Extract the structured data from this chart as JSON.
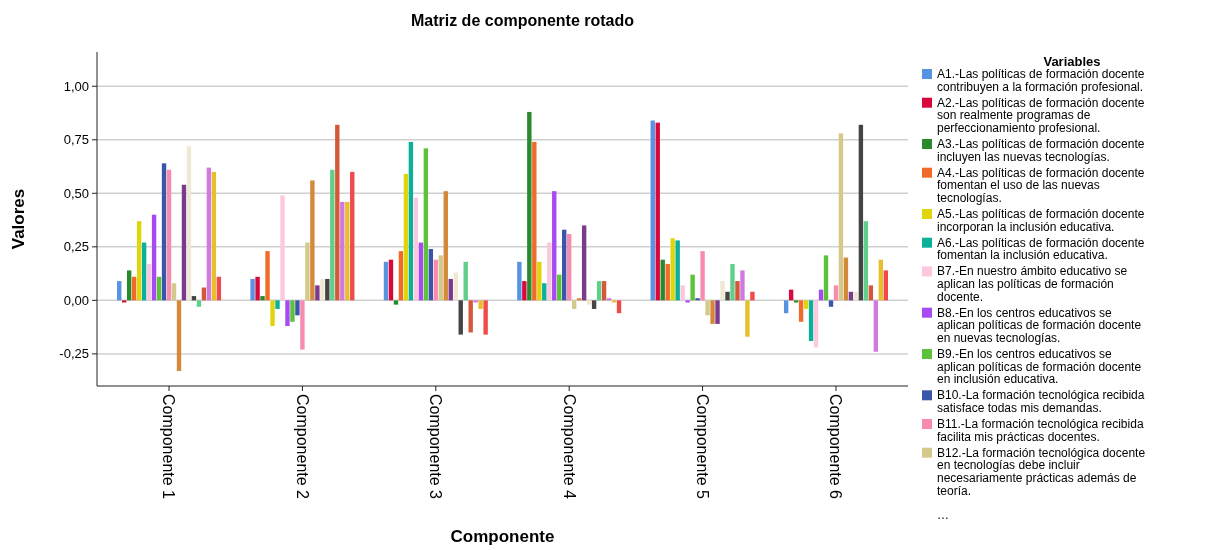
{
  "chart_data": {
    "type": "bar",
    "title": "Matriz de componente rotado",
    "xlabel": "Componente",
    "ylabel": "Valores",
    "legend_title": "Variables",
    "legend": "right",
    "grid": "y",
    "annotations": [
      "…"
    ],
    "categories": [
      "Componente 1",
      "Componente 2",
      "Componente 3",
      "Componente 4",
      "Componente 5",
      "Componente 6"
    ],
    "ylim": [
      -0.4,
      1.16
    ],
    "yticks": [
      {
        "value": -0.25,
        "label": "-0,25"
      },
      {
        "value": 0,
        "label": "0,00"
      },
      {
        "value": 0.25,
        "label": "0,25"
      },
      {
        "value": 0.5,
        "label": "0,50"
      },
      {
        "value": 0.75,
        "label": "0,75"
      },
      {
        "value": 1,
        "label": "1,00"
      }
    ],
    "series": [
      {
        "name": "A1.-Las políticas de formación docente contribuyen a la formación profesional.",
        "color": "#5793e0",
        "values": [
          0.09,
          0.1,
          0.18,
          0.18,
          0.84,
          -0.06
        ]
      },
      {
        "name": "A2.-Las políticas de formación docente son realmente programas de perfeccionamiento profesional.",
        "color": "#d9083c",
        "values": [
          -0.01,
          0.11,
          0.19,
          0.09,
          0.83,
          0.05
        ]
      },
      {
        "name": "A3.-Las políticas de formación docente incluyen las nuevas tecnologías.",
        "color": "#2a8a2a",
        "values": [
          0.14,
          0.02,
          -0.02,
          0.88,
          0.19,
          -0.01
        ]
      },
      {
        "name": "A4.-Las políticas de formación docente fomentan el uso de las nuevas tecnologías.",
        "color": "#f26a2a",
        "values": [
          0.11,
          0.23,
          0.23,
          0.74,
          0.17,
          -0.1
        ]
      },
      {
        "name": "A5.-Las políticas de formación docente incorporan la inclusión educativa.",
        "color": "#e0d40a",
        "values": [
          0.37,
          -0.12,
          0.59,
          0.18,
          0.29,
          -0.04
        ]
      },
      {
        "name": "A6.-Las políticas de formación docente fomentan la inclusión educativa.",
        "color": "#0ab09a",
        "values": [
          0.27,
          -0.04,
          0.74,
          0.08,
          0.28,
          -0.19
        ]
      },
      {
        "name": "B7.-En nuestro ámbito educativo se aplican las políticas de formación docente.",
        "color": "#fcc8e0",
        "values": [
          0.17,
          0.49,
          0.48,
          0.27,
          0.07,
          -0.22
        ]
      },
      {
        "name": "B8.-En los centros educativos se aplican políticas de formación docente en nuevas tecnologías.",
        "color": "#a84af2",
        "values": [
          0.4,
          -0.12,
          0.27,
          0.51,
          -0.01,
          0.05
        ]
      },
      {
        "name": "B9.-En los centros educativos se aplican políticas de formación docente en inclusión educativa.",
        "color": "#5cc23a",
        "values": [
          0.11,
          -0.1,
          0.71,
          0.12,
          0.12,
          0.21
        ]
      },
      {
        "name": "B10.-La formación tecnológica recibida satisface todas mis demandas.",
        "color": "#3a56a8",
        "values": [
          0.64,
          -0.07,
          0.24,
          0.33,
          0.01,
          -0.03
        ]
      },
      {
        "name": "B11.-La formación tecnológica recibida facilita mis prácticas docentes.",
        "color": "#f78cb0",
        "values": [
          0.61,
          -0.23,
          0.19,
          0.31,
          0.23,
          0.07
        ]
      },
      {
        "name": "B12.-La formación tecnológica docente en tecnologías debe incluir necesariamente prácticas además de teoría.",
        "color": "#d4c98a",
        "values": [
          0.08,
          0.27,
          0.21,
          -0.04,
          -0.07,
          0.78
        ]
      },
      {
        "color": "#d4883a",
        "values": [
          -0.33,
          0.56,
          0.51,
          0.01,
          -0.11,
          0.2
        ]
      },
      {
        "color": "#7a3a8e",
        "values": [
          0.54,
          0.07,
          0.1,
          0.35,
          -0.11,
          0.04
        ]
      },
      {
        "color": "#efe8d4",
        "values": [
          0.72,
          0.1,
          0.13,
          -0.02,
          0.09,
          0.04
        ]
      },
      {
        "color": "#444444",
        "values": [
          0.02,
          0.1,
          -0.16,
          -0.04,
          0.04,
          0.82
        ]
      },
      {
        "color": "#5fcf8a",
        "values": [
          -0.03,
          0.61,
          0.18,
          0.09,
          0.17,
          0.37
        ]
      },
      {
        "color": "#d6583a",
        "values": [
          0.06,
          0.82,
          -0.15,
          0.09,
          0.09,
          0.07
        ]
      },
      {
        "color": "#d07ae0",
        "values": [
          0.62,
          0.46,
          -0.01,
          0.01,
          0.14,
          -0.24
        ]
      },
      {
        "color": "#e6c02a",
        "values": [
          0.6,
          0.46,
          -0.04,
          -0.01,
          -0.17,
          0.19
        ]
      },
      {
        "color": "#f04a4a",
        "values": [
          0.11,
          0.6,
          -0.16,
          -0.06,
          0.04,
          0.14
        ]
      }
    ]
  }
}
